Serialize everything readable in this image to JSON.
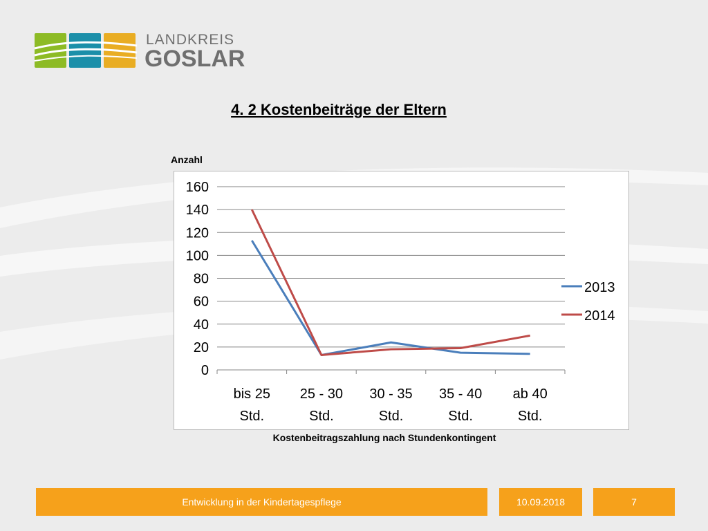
{
  "logo": {
    "line1": "LANDKREIS",
    "line2": "GOSLAR",
    "tile_colors": [
      "#8dbb25",
      "#1b8fa9",
      "#e9ad23"
    ]
  },
  "slide": {
    "title": "4. 2  Kostenbeiträge der Eltern"
  },
  "chart_data": {
    "type": "line",
    "ylabel": "Anzahl",
    "xlabel": "Kostenbeitragszahlung nach Stundenkontingent",
    "categories": [
      "bis 25\nStd.",
      "25 - 30\nStd.",
      "30 - 35\nStd.",
      "35 - 40\nStd.",
      "ab 40\nStd."
    ],
    "series": [
      {
        "name": "2013",
        "values": [
          113,
          13,
          24,
          15,
          14
        ],
        "color": "#4a7ebb"
      },
      {
        "name": "2014",
        "values": [
          140,
          13,
          18,
          19,
          30
        ],
        "color": "#be4b48"
      }
    ],
    "ylim": [
      0,
      160
    ],
    "yticks": [
      0,
      20,
      40,
      60,
      80,
      100,
      120,
      140,
      160
    ],
    "grid": true,
    "legend_position": "right"
  },
  "footer": {
    "text": "Entwicklung in der Kindertagespflege",
    "date": "10.09.2018",
    "page": "7"
  },
  "colors": {
    "accent": "#f6a11b",
    "background": "#ececec"
  }
}
